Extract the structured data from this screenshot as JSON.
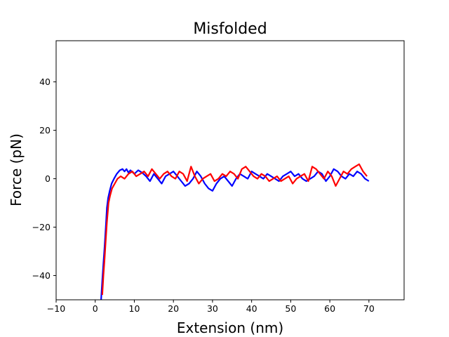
{
  "chart_data": {
    "type": "line",
    "title": "Misfolded",
    "xlabel": "Extension (nm)",
    "ylabel": "Force (pN)",
    "xlim": [
      -10,
      79
    ],
    "ylim": [
      -50,
      57
    ],
    "xticks": [
      -10,
      0,
      10,
      20,
      30,
      40,
      50,
      60,
      70
    ],
    "yticks": [
      -40,
      -20,
      0,
      20,
      40
    ],
    "xtick_labels": [
      "−10",
      "0",
      "10",
      "20",
      "30",
      "40",
      "50",
      "60",
      "70"
    ],
    "ytick_labels": [
      "−40",
      "−20",
      "0",
      "20",
      "40"
    ],
    "grid": false,
    "legend": "none",
    "series": [
      {
        "color": "#0000ff",
        "x": [
          1.5,
          1.8,
          2.1,
          2.4,
          2.7,
          3.0,
          3.3,
          3.7,
          4.2,
          4.8,
          5.5,
          6.3,
          7.0,
          7.5,
          8.0,
          8.5,
          9.0,
          10,
          11,
          12,
          13,
          14,
          15,
          16,
          17,
          18,
          19,
          20,
          21,
          22,
          23,
          24,
          25,
          26,
          27,
          28,
          29,
          30,
          31,
          32,
          33,
          34,
          35,
          36,
          37,
          38,
          39,
          40,
          41,
          42,
          43,
          44,
          45,
          46,
          47,
          48,
          49,
          50,
          51,
          52,
          53,
          54,
          55,
          56,
          57,
          58,
          59,
          60,
          61,
          62,
          63,
          64,
          65,
          66,
          67,
          68,
          69,
          70
        ],
        "y": [
          -50,
          -42,
          -35,
          -28,
          -20,
          -12,
          -8,
          -5,
          -2,
          0,
          2,
          3.5,
          4,
          3,
          4,
          2.5,
          3.5,
          2,
          3.5,
          2.5,
          1,
          -1,
          2,
          0,
          -2,
          1,
          2,
          3,
          1,
          -1,
          -3,
          -2,
          0,
          3,
          1,
          -2,
          -4,
          -5,
          -2,
          0,
          1,
          -1,
          -3,
          0,
          2,
          1,
          0,
          3,
          2,
          1,
          0,
          2,
          1,
          0,
          -1,
          1,
          2,
          3,
          1,
          2,
          0,
          -1,
          0,
          1,
          3,
          2,
          -1,
          1,
          4,
          3,
          1,
          0,
          2,
          1,
          3,
          2,
          0,
          -1
        ]
      },
      {
        "color": "#ff0000",
        "x": [
          1.8,
          2.1,
          2.4,
          2.7,
          3.0,
          3.4,
          3.8,
          4.3,
          5.0,
          5.7,
          6.5,
          7.5,
          8.5,
          9.5,
          10.5,
          11.5,
          12.5,
          13.5,
          14.5,
          15.5,
          16.5,
          17.5,
          18.5,
          19.5,
          20.5,
          21.5,
          22.5,
          23.5,
          24.5,
          25.5,
          26.5,
          27.5,
          28.5,
          29.5,
          30.5,
          31.5,
          32.5,
          33.5,
          34.5,
          35.5,
          36.5,
          37.5,
          38.5,
          39.5,
          40.5,
          41.5,
          42.5,
          43.5,
          44.5,
          45.5,
          46.5,
          47.5,
          48.5,
          49.5,
          50.5,
          51.5,
          52.5,
          53.5,
          54.5,
          55.5,
          56.5,
          57.5,
          58.5,
          59.5,
          60.5,
          61.5,
          62.5,
          63.5,
          64.5,
          65.5,
          66.5,
          67.5,
          68.5,
          69.5
        ],
        "y": [
          -48,
          -40,
          -33,
          -25,
          -18,
          -10,
          -7,
          -4,
          -2,
          0,
          1,
          0,
          2,
          3,
          1,
          2,
          3,
          1,
          4,
          2,
          0,
          2,
          3,
          1,
          0,
          3,
          2,
          -1,
          5,
          1,
          -2,
          0,
          1,
          2,
          -1,
          0,
          2,
          1,
          3,
          2,
          0,
          4,
          5,
          3,
          1,
          0,
          2,
          1,
          -1,
          0,
          1,
          -1,
          0,
          1,
          -2,
          0,
          1,
          2,
          -1,
          5,
          4,
          2,
          0,
          3,
          1,
          -3,
          0,
          3,
          2,
          4,
          5,
          6,
          3,
          1
        ]
      }
    ]
  }
}
